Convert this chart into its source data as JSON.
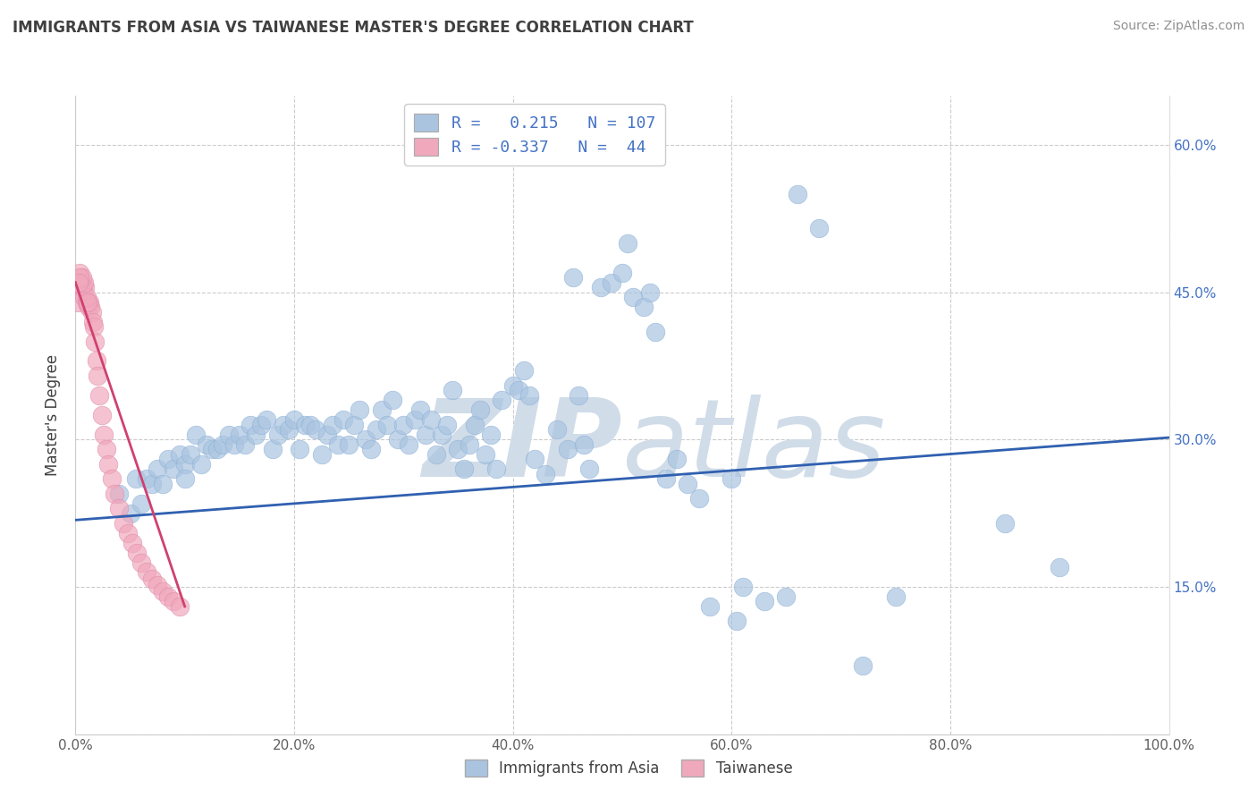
{
  "title": "IMMIGRANTS FROM ASIA VS TAIWANESE MASTER'S DEGREE CORRELATION CHART",
  "source": "Source: ZipAtlas.com",
  "ylabel": "Master's Degree",
  "x_label_legend_blue": "Immigrants from Asia",
  "x_label_legend_pink": "Taiwanese",
  "legend_blue_R": "0.215",
  "legend_blue_N": "107",
  "legend_pink_R": "-0.337",
  "legend_pink_N": "44",
  "xlim": [
    0.0,
    1.0
  ],
  "ylim": [
    0.0,
    0.65
  ],
  "xticks": [
    0.0,
    0.2,
    0.4,
    0.6,
    0.8,
    1.0
  ],
  "yticks": [
    0.0,
    0.15,
    0.3,
    0.45,
    0.6
  ],
  "xtick_labels": [
    "0.0%",
    "20.0%",
    "40.0%",
    "60.0%",
    "80.0%",
    "100.0%"
  ],
  "right_ytick_labels": [
    "",
    "15.0%",
    "30.0%",
    "45.0%",
    "60.0%"
  ],
  "background_color": "#ffffff",
  "grid_color": "#cccccc",
  "blue_color": "#aac4e0",
  "pink_color": "#f0a8bc",
  "blue_line_color": "#3060b0",
  "pink_line_color": "#d04070",
  "title_color": "#404040",
  "source_color": "#909090",
  "legend_text_color": "#3060b0",
  "watermark_color": "#d0dce8",
  "blue_points": [
    [
      0.04,
      0.245
    ],
    [
      0.05,
      0.225
    ],
    [
      0.055,
      0.26
    ],
    [
      0.06,
      0.235
    ],
    [
      0.065,
      0.26
    ],
    [
      0.07,
      0.255
    ],
    [
      0.075,
      0.27
    ],
    [
      0.08,
      0.255
    ],
    [
      0.085,
      0.28
    ],
    [
      0.09,
      0.27
    ],
    [
      0.095,
      0.285
    ],
    [
      0.1,
      0.275
    ],
    [
      0.1,
      0.26
    ],
    [
      0.105,
      0.285
    ],
    [
      0.11,
      0.305
    ],
    [
      0.115,
      0.275
    ],
    [
      0.12,
      0.295
    ],
    [
      0.125,
      0.29
    ],
    [
      0.13,
      0.29
    ],
    [
      0.135,
      0.295
    ],
    [
      0.14,
      0.305
    ],
    [
      0.145,
      0.295
    ],
    [
      0.15,
      0.305
    ],
    [
      0.155,
      0.295
    ],
    [
      0.16,
      0.315
    ],
    [
      0.165,
      0.305
    ],
    [
      0.17,
      0.315
    ],
    [
      0.175,
      0.32
    ],
    [
      0.18,
      0.29
    ],
    [
      0.185,
      0.305
    ],
    [
      0.19,
      0.315
    ],
    [
      0.195,
      0.31
    ],
    [
      0.2,
      0.32
    ],
    [
      0.205,
      0.29
    ],
    [
      0.21,
      0.315
    ],
    [
      0.215,
      0.315
    ],
    [
      0.22,
      0.31
    ],
    [
      0.225,
      0.285
    ],
    [
      0.23,
      0.305
    ],
    [
      0.235,
      0.315
    ],
    [
      0.24,
      0.295
    ],
    [
      0.245,
      0.32
    ],
    [
      0.25,
      0.295
    ],
    [
      0.255,
      0.315
    ],
    [
      0.26,
      0.33
    ],
    [
      0.265,
      0.3
    ],
    [
      0.27,
      0.29
    ],
    [
      0.275,
      0.31
    ],
    [
      0.28,
      0.33
    ],
    [
      0.285,
      0.315
    ],
    [
      0.29,
      0.34
    ],
    [
      0.295,
      0.3
    ],
    [
      0.3,
      0.315
    ],
    [
      0.305,
      0.295
    ],
    [
      0.31,
      0.32
    ],
    [
      0.315,
      0.33
    ],
    [
      0.32,
      0.305
    ],
    [
      0.325,
      0.32
    ],
    [
      0.33,
      0.285
    ],
    [
      0.335,
      0.305
    ],
    [
      0.34,
      0.315
    ],
    [
      0.345,
      0.35
    ],
    [
      0.35,
      0.29
    ],
    [
      0.355,
      0.27
    ],
    [
      0.36,
      0.295
    ],
    [
      0.365,
      0.315
    ],
    [
      0.37,
      0.33
    ],
    [
      0.375,
      0.285
    ],
    [
      0.38,
      0.305
    ],
    [
      0.385,
      0.27
    ],
    [
      0.39,
      0.34
    ],
    [
      0.4,
      0.355
    ],
    [
      0.405,
      0.35
    ],
    [
      0.41,
      0.37
    ],
    [
      0.415,
      0.345
    ],
    [
      0.42,
      0.28
    ],
    [
      0.43,
      0.265
    ],
    [
      0.44,
      0.31
    ],
    [
      0.45,
      0.29
    ],
    [
      0.455,
      0.465
    ],
    [
      0.46,
      0.345
    ],
    [
      0.465,
      0.295
    ],
    [
      0.47,
      0.27
    ],
    [
      0.48,
      0.455
    ],
    [
      0.49,
      0.46
    ],
    [
      0.5,
      0.47
    ],
    [
      0.505,
      0.5
    ],
    [
      0.51,
      0.445
    ],
    [
      0.52,
      0.435
    ],
    [
      0.525,
      0.45
    ],
    [
      0.53,
      0.41
    ],
    [
      0.54,
      0.26
    ],
    [
      0.55,
      0.28
    ],
    [
      0.56,
      0.255
    ],
    [
      0.57,
      0.24
    ],
    [
      0.58,
      0.13
    ],
    [
      0.6,
      0.26
    ],
    [
      0.605,
      0.115
    ],
    [
      0.61,
      0.15
    ],
    [
      0.63,
      0.135
    ],
    [
      0.65,
      0.14
    ],
    [
      0.66,
      0.55
    ],
    [
      0.68,
      0.515
    ],
    [
      0.72,
      0.07
    ],
    [
      0.75,
      0.14
    ],
    [
      0.85,
      0.215
    ],
    [
      0.9,
      0.17
    ]
  ],
  "pink_points": [
    [
      0.002,
      0.44
    ],
    [
      0.004,
      0.47
    ],
    [
      0.005,
      0.46
    ],
    [
      0.006,
      0.455
    ],
    [
      0.007,
      0.455
    ],
    [
      0.008,
      0.445
    ],
    [
      0.009,
      0.455
    ],
    [
      0.01,
      0.44
    ],
    [
      0.011,
      0.44
    ],
    [
      0.012,
      0.435
    ],
    [
      0.013,
      0.44
    ],
    [
      0.014,
      0.435
    ],
    [
      0.015,
      0.43
    ],
    [
      0.016,
      0.42
    ],
    [
      0.017,
      0.415
    ],
    [
      0.018,
      0.4
    ],
    [
      0.019,
      0.38
    ],
    [
      0.02,
      0.365
    ],
    [
      0.022,
      0.345
    ],
    [
      0.024,
      0.325
    ],
    [
      0.026,
      0.305
    ],
    [
      0.028,
      0.29
    ],
    [
      0.03,
      0.275
    ],
    [
      0.033,
      0.26
    ],
    [
      0.036,
      0.245
    ],
    [
      0.04,
      0.23
    ],
    [
      0.044,
      0.215
    ],
    [
      0.048,
      0.205
    ],
    [
      0.052,
      0.195
    ],
    [
      0.056,
      0.185
    ],
    [
      0.06,
      0.175
    ],
    [
      0.065,
      0.165
    ],
    [
      0.07,
      0.158
    ],
    [
      0.075,
      0.152
    ],
    [
      0.08,
      0.145
    ],
    [
      0.085,
      0.14
    ],
    [
      0.09,
      0.135
    ],
    [
      0.095,
      0.13
    ],
    [
      0.01,
      0.445
    ],
    [
      0.011,
      0.44
    ],
    [
      0.008,
      0.46
    ],
    [
      0.006,
      0.465
    ],
    [
      0.004,
      0.465
    ],
    [
      0.003,
      0.46
    ]
  ],
  "blue_line": [
    [
      0.0,
      0.218
    ],
    [
      1.0,
      0.302
    ]
  ],
  "pink_line": [
    [
      0.0,
      0.46
    ],
    [
      0.1,
      0.13
    ]
  ]
}
